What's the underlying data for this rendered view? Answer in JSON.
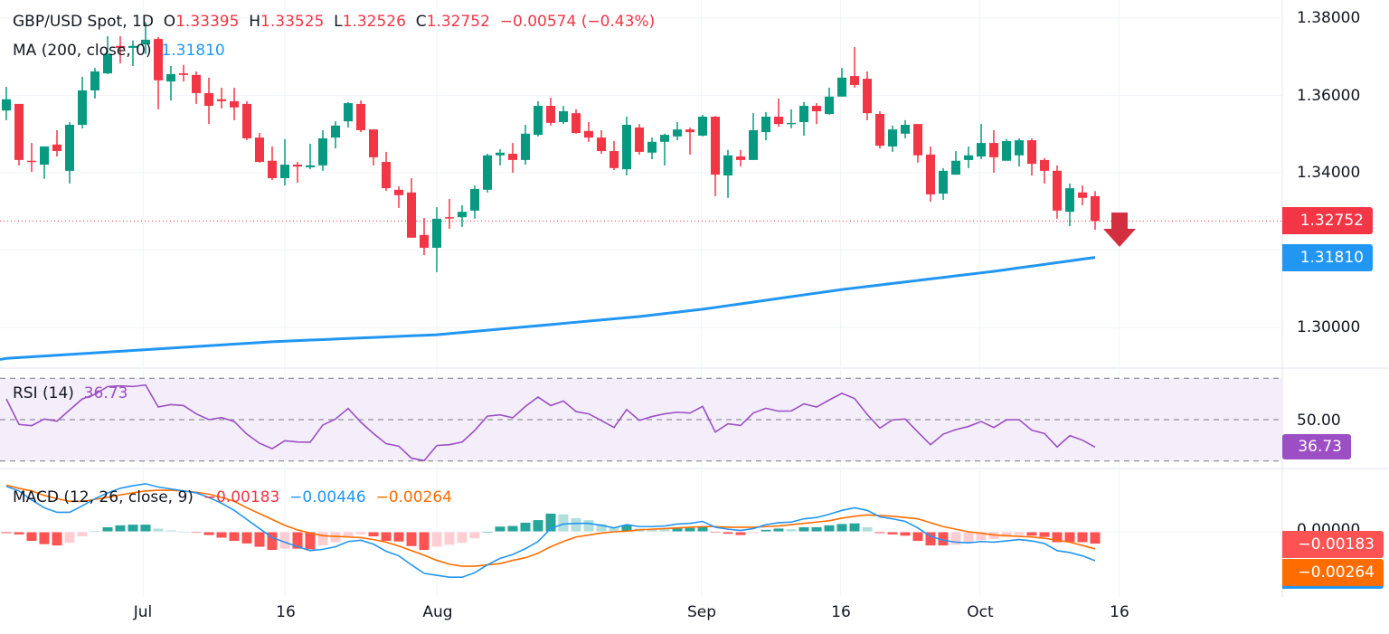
{
  "header": {
    "symbol": "GBP/USD Spot, 1D",
    "o_label": "O",
    "o_value": "1.33395",
    "h_label": "H",
    "h_value": "1.33525",
    "l_label": "L",
    "l_value": "1.32526",
    "c_label": "C",
    "c_value": "1.32752",
    "change": "−0.00574 (−0.43%)",
    "ma_label": "MA (200, close, 0)",
    "ma_value": "1.31810"
  },
  "price_axis": {
    "ticks": [
      "1.38000",
      "1.36000",
      "1.34000",
      "1.30000"
    ],
    "last_price_tag": "1.32752",
    "ma_tag": "1.31810"
  },
  "rsi": {
    "label": "RSI (14)",
    "value": "36.73",
    "level_label": "50.00",
    "tag": "36.73"
  },
  "macd": {
    "label": "MACD (12, 26, close, 9)",
    "hist_value": "−0.00183",
    "macd_value": "−0.00446",
    "signal_value": "−0.00264",
    "zero_label": "0.00000",
    "hist_tag": "−0.00183",
    "signal_tag": "−0.00264"
  },
  "time_axis": {
    "labels": [
      "Jul",
      "16",
      "Aug",
      "Sep",
      "16",
      "Oct",
      "16"
    ]
  },
  "colors": {
    "up": "#089981",
    "down": "#F23645",
    "ma": "#2196F3",
    "rsi": "#9C4FC4",
    "signal": "#FF6D00",
    "arrow": "#D32F3F"
  },
  "chart_data": {
    "type": "candlestick",
    "title": "GBP/USD Spot, 1D",
    "ylim": [
      1.2925,
      1.3847
    ],
    "y_ticks": [
      1.3,
      1.32,
      1.34,
      1.36,
      1.38
    ],
    "grid": true,
    "x_ticks": [
      {
        "label": "Jul",
        "index": 10.8
      },
      {
        "label": "16",
        "index": 22
      },
      {
        "label": "Aug",
        "index": 34
      },
      {
        "label": "Sep",
        "index": 54.9
      },
      {
        "label": "16",
        "index": 65.9
      },
      {
        "label": "Oct",
        "index": 76.9
      },
      {
        "label": "16",
        "index": 87.9
      }
    ],
    "ohlc_fields": [
      "open",
      "high",
      "low",
      "close"
    ],
    "candles": [
      [
        1.3561,
        1.3622,
        1.3536,
        1.359
      ],
      [
        1.3578,
        1.3578,
        1.3419,
        1.3433
      ],
      [
        1.3431,
        1.3477,
        1.3402,
        1.3428
      ],
      [
        1.3421,
        1.3468,
        1.3384,
        1.3468
      ],
      [
        1.3473,
        1.351,
        1.3442,
        1.3456
      ],
      [
        1.3405,
        1.3531,
        1.3372,
        1.3524
      ],
      [
        1.3524,
        1.3648,
        1.3515,
        1.3613
      ],
      [
        1.3613,
        1.3671,
        1.3592,
        1.3662
      ],
      [
        1.3657,
        1.3753,
        1.3655,
        1.3707
      ],
      [
        1.3728,
        1.3753,
        1.3683,
        1.3723
      ],
      [
        1.3723,
        1.3742,
        1.3676,
        1.3728
      ],
      [
        1.3732,
        1.3789,
        1.3707,
        1.3744
      ],
      [
        1.3746,
        1.3751,
        1.3564,
        1.3639
      ],
      [
        1.3636,
        1.3676,
        1.3587,
        1.3655
      ],
      [
        1.3657,
        1.3679,
        1.3636,
        1.3653
      ],
      [
        1.3653,
        1.3662,
        1.3578,
        1.3606
      ],
      [
        1.3606,
        1.3646,
        1.3526,
        1.3573
      ],
      [
        1.359,
        1.362,
        1.3566,
        1.3585
      ],
      [
        1.3585,
        1.362,
        1.3536,
        1.3569
      ],
      [
        1.3578,
        1.3585,
        1.3484,
        1.3489
      ],
      [
        1.3491,
        1.3503,
        1.3426,
        1.3428
      ],
      [
        1.3431,
        1.3468,
        1.3381,
        1.3386
      ],
      [
        1.3386,
        1.3487,
        1.3367,
        1.3421
      ],
      [
        1.3421,
        1.3428,
        1.3374,
        1.3416
      ],
      [
        1.3414,
        1.3475,
        1.3409,
        1.3419
      ],
      [
        1.3419,
        1.351,
        1.3405,
        1.3489
      ],
      [
        1.3491,
        1.3533,
        1.3463,
        1.3522
      ],
      [
        1.3533,
        1.3583,
        1.3517,
        1.358
      ],
      [
        1.3578,
        1.3587,
        1.3505,
        1.351
      ],
      [
        1.3512,
        1.3512,
        1.3419,
        1.344
      ],
      [
        1.3428,
        1.3454,
        1.3353,
        1.336
      ],
      [
        1.3356,
        1.3365,
        1.3309,
        1.3342
      ],
      [
        1.3349,
        1.3386,
        1.3232,
        1.3232
      ],
      [
        1.3239,
        1.3283,
        1.3187,
        1.3206
      ],
      [
        1.3206,
        1.3311,
        1.3143,
        1.3281
      ],
      [
        1.3285,
        1.3332,
        1.3255,
        1.3283
      ],
      [
        1.3285,
        1.3316,
        1.326,
        1.3299
      ],
      [
        1.3302,
        1.3367,
        1.3281,
        1.3358
      ],
      [
        1.3356,
        1.3449,
        1.3349,
        1.3445
      ],
      [
        1.3445,
        1.3461,
        1.3419,
        1.3452
      ],
      [
        1.3449,
        1.3477,
        1.34,
        1.3433
      ],
      [
        1.3433,
        1.3524,
        1.3421,
        1.3501
      ],
      [
        1.3498,
        1.3585,
        1.3494,
        1.3573
      ],
      [
        1.3573,
        1.3594,
        1.3522,
        1.3529
      ],
      [
        1.3531,
        1.3573,
        1.3526,
        1.3559
      ],
      [
        1.3554,
        1.3564,
        1.3501,
        1.3503
      ],
      [
        1.3508,
        1.3531,
        1.348,
        1.3491
      ],
      [
        1.3491,
        1.351,
        1.3449,
        1.3456
      ],
      [
        1.3456,
        1.3482,
        1.3407,
        1.3412
      ],
      [
        1.3409,
        1.3545,
        1.3393,
        1.3524
      ],
      [
        1.3517,
        1.3526,
        1.3447,
        1.3454
      ],
      [
        1.3452,
        1.3491,
        1.3435,
        1.348
      ],
      [
        1.348,
        1.3501,
        1.3419,
        1.3498
      ],
      [
        1.3494,
        1.3531,
        1.3484,
        1.3512
      ],
      [
        1.3512,
        1.3517,
        1.3447,
        1.3505
      ],
      [
        1.3496,
        1.355,
        1.3494,
        1.3545
      ],
      [
        1.3545,
        1.3547,
        1.3339,
        1.3395
      ],
      [
        1.3393,
        1.3459,
        1.3335,
        1.3445
      ],
      [
        1.3442,
        1.3459,
        1.3416,
        1.3433
      ],
      [
        1.3433,
        1.3554,
        1.3433,
        1.351
      ],
      [
        1.3505,
        1.3557,
        1.3484,
        1.3545
      ],
      [
        1.3545,
        1.3592,
        1.3519,
        1.3526
      ],
      [
        1.3526,
        1.3564,
        1.3515,
        1.3529
      ],
      [
        1.3531,
        1.3583,
        1.3496,
        1.3573
      ],
      [
        1.3573,
        1.358,
        1.3526,
        1.3559
      ],
      [
        1.3552,
        1.362,
        1.355,
        1.3597
      ],
      [
        1.3597,
        1.3671,
        1.3597,
        1.3646
      ],
      [
        1.365,
        1.3725,
        1.362,
        1.3627
      ],
      [
        1.3643,
        1.3662,
        1.3536,
        1.3554
      ],
      [
        1.3552,
        1.3559,
        1.3463,
        1.347
      ],
      [
        1.3468,
        1.3522,
        1.3454,
        1.3512
      ],
      [
        1.3501,
        1.3536,
        1.3489,
        1.3524
      ],
      [
        1.3526,
        1.3526,
        1.3426,
        1.3445
      ],
      [
        1.3447,
        1.3468,
        1.3325,
        1.3344
      ],
      [
        1.3346,
        1.3412,
        1.333,
        1.3405
      ],
      [
        1.3395,
        1.3456,
        1.3395,
        1.3431
      ],
      [
        1.3433,
        1.3468,
        1.3412,
        1.3445
      ],
      [
        1.3442,
        1.3526,
        1.3435,
        1.3477
      ],
      [
        1.3477,
        1.351,
        1.34,
        1.344
      ],
      [
        1.3431,
        1.3487,
        1.3431,
        1.3482
      ],
      [
        1.3445,
        1.3489,
        1.3416,
        1.3484
      ],
      [
        1.3484,
        1.3489,
        1.3393,
        1.3423
      ],
      [
        1.3433,
        1.3438,
        1.3372,
        1.3405
      ],
      [
        1.3405,
        1.3419,
        1.3281,
        1.3302
      ],
      [
        1.3299,
        1.3372,
        1.3262,
        1.336
      ],
      [
        1.3349,
        1.3367,
        1.3316,
        1.3335
      ],
      [
        1.33395,
        1.33525,
        1.32526,
        1.32752
      ]
    ],
    "ma200_points": [
      [
        0,
        1.292
      ],
      [
        21,
        1.2963
      ],
      [
        34,
        1.2981
      ],
      [
        50,
        1.3028
      ],
      [
        55,
        1.3047
      ],
      [
        66,
        1.3098
      ],
      [
        78,
        1.3145
      ],
      [
        86,
        1.3181
      ]
    ],
    "last_price": 1.32752,
    "ma200_last": 1.3181,
    "rsi": {
      "ylim": [
        30,
        70
      ],
      "levels": [
        70,
        50,
        30
      ],
      "values": [
        60.0,
        47.7,
        47.1,
        50.3,
        49.3,
        54.7,
        60.0,
        62.2,
        66.0,
        66.3,
        66.0,
        66.7,
        56.1,
        57.3,
        56.8,
        52.8,
        50.0,
        51.0,
        49.1,
        43.0,
        38.6,
        36.0,
        39.8,
        39.2,
        39.1,
        47.4,
        50.3,
        55.4,
        48.8,
        43.3,
        38.4,
        37.2,
        31.4,
        30.2,
        37.5,
        37.9,
        39.2,
        44.8,
        51.7,
        52.3,
        50.9,
        56.4,
        60.9,
        56.8,
        59.0,
        53.9,
        52.8,
        49.6,
        46.2,
        54.9,
        49.6,
        51.5,
        52.8,
        53.6,
        53.2,
        56.4,
        44.0,
        48.0,
        47.2,
        53.2,
        55.5,
        54.1,
        54.2,
        57.6,
        56.1,
        59.5,
        62.7,
        60.2,
        52.5,
        45.9,
        49.9,
        50.3,
        44.0,
        37.9,
        43.0,
        45.2,
        46.7,
        49.1,
        46.2,
        49.9,
        50.0,
        44.9,
        43.3,
        36.8,
        42.3,
        40.1,
        36.73
      ]
    },
    "macd": {
      "macd": [
        0.007,
        0.0063,
        0.0049,
        0.0037,
        0.003,
        0.003,
        0.004,
        0.0051,
        0.006,
        0.0067,
        0.0071,
        0.0074,
        0.0069,
        0.0066,
        0.0063,
        0.006,
        0.0053,
        0.0044,
        0.0033,
        0.0019,
        0.0005,
        -0.0009,
        -0.0016,
        -0.0023,
        -0.0029,
        -0.0027,
        -0.0023,
        -0.0015,
        -0.0013,
        -0.0019,
        -0.003,
        -0.0037,
        -0.0051,
        -0.0064,
        -0.0067,
        -0.007,
        -0.007,
        -0.0063,
        -0.0051,
        -0.0041,
        -0.0035,
        -0.0026,
        -0.0015,
        0.0005,
        0.0012,
        0.0013,
        0.0013,
        0.001,
        0.0006,
        0.0011,
        0.0008,
        0.0008,
        0.0009,
        0.0012,
        0.0013,
        0.0016,
        0.0007,
        0.0004,
        0.0002,
        0.0005,
        0.0011,
        0.0014,
        0.0015,
        0.002,
        0.0022,
        0.0027,
        0.0033,
        0.0037,
        0.0033,
        0.0023,
        0.002,
        0.0016,
        0.0006,
        -0.0007,
        -0.0013,
        -0.0016,
        -0.0017,
        -0.0015,
        -0.0016,
        -0.0014,
        -0.0012,
        -0.0014,
        -0.0018,
        -0.0029,
        -0.0032,
        -0.0037,
        -0.00446
      ],
      "signal": [
        0.0072,
        0.0067,
        0.0063,
        0.0056,
        0.0051,
        0.0047,
        0.0047,
        0.005,
        0.0053,
        0.0057,
        0.006,
        0.0063,
        0.0064,
        0.0064,
        0.0063,
        0.0061,
        0.0058,
        0.0053,
        0.0047,
        0.0037,
        0.0028,
        0.0019,
        0.001,
        0.0003,
        -0.0002,
        -0.0006,
        -0.0007,
        -0.0008,
        -0.0009,
        -0.0012,
        -0.0016,
        -0.0022,
        -0.0029,
        -0.0036,
        -0.0044,
        -0.005,
        -0.0053,
        -0.0053,
        -0.0051,
        -0.0049,
        -0.0044,
        -0.004,
        -0.0033,
        -0.0023,
        -0.0015,
        -0.0008,
        -0.0005,
        -0.0002,
        0.0,
        0.0001,
        0.0003,
        0.0004,
        0.0005,
        0.0006,
        0.0007,
        0.0008,
        0.0008,
        0.0007,
        0.0007,
        0.0007,
        0.0008,
        0.0009,
        0.0011,
        0.0013,
        0.0015,
        0.0017,
        0.0021,
        0.0024,
        0.0026,
        0.0025,
        0.0024,
        0.0022,
        0.002,
        0.0014,
        0.0008,
        0.0004,
        0.0,
        -0.0002,
        -0.0005,
        -0.0006,
        -0.0007,
        -0.0008,
        -0.001,
        -0.0013,
        -0.0016,
        -0.0021,
        -0.00264
      ],
      "histogram_last": -0.00183
    }
  }
}
